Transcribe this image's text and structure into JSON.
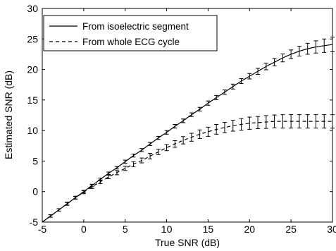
{
  "chart_data": {
    "type": "line",
    "title": "",
    "xlabel": "True SNR (dB)",
    "ylabel": "Estimated SNR (dB)",
    "xlim": [
      -5,
      30
    ],
    "ylim": [
      -5,
      30
    ],
    "xticks": [
      -5,
      0,
      5,
      10,
      15,
      20,
      25,
      30
    ],
    "yticks": [
      -5,
      0,
      5,
      10,
      15,
      20,
      25,
      30
    ],
    "grid": false,
    "legend_position": "top-left",
    "x": [
      -4,
      -3,
      -2,
      -1,
      0,
      1,
      2,
      3,
      4,
      5,
      6,
      7,
      8,
      9,
      10,
      11,
      12,
      13,
      14,
      15,
      16,
      17,
      18,
      19,
      20,
      21,
      22,
      23,
      24,
      25,
      26,
      27,
      28,
      29,
      30
    ],
    "series": [
      {
        "name": "From isoelectric segment",
        "line_style": "solid",
        "values": [
          -4.0,
          -3.0,
          -2.0,
          -1.0,
          0.0,
          1.0,
          2.0,
          3.0,
          3.9,
          4.9,
          5.9,
          6.8,
          7.8,
          8.8,
          9.7,
          10.7,
          11.6,
          12.6,
          13.5,
          14.5,
          15.4,
          16.3,
          17.2,
          18.1,
          18.9,
          19.7,
          20.5,
          21.2,
          21.9,
          22.5,
          23.0,
          23.4,
          23.7,
          23.9,
          24.1
        ],
        "error": [
          0.2,
          0.2,
          0.2,
          0.2,
          0.2,
          0.2,
          0.2,
          0.2,
          0.2,
          0.25,
          0.25,
          0.25,
          0.25,
          0.25,
          0.3,
          0.3,
          0.3,
          0.3,
          0.3,
          0.35,
          0.35,
          0.35,
          0.4,
          0.4,
          0.45,
          0.5,
          0.55,
          0.6,
          0.65,
          0.7,
          0.8,
          0.9,
          1.0,
          1.1,
          1.2
        ]
      },
      {
        "name": "From whole ECG cycle",
        "line_style": "dashed",
        "values": [
          -4.0,
          -3.0,
          -2.0,
          -1.0,
          -0.1,
          0.8,
          1.6,
          2.4,
          3.1,
          3.8,
          4.5,
          5.1,
          5.8,
          6.5,
          7.2,
          7.8,
          8.4,
          8.9,
          9.4,
          9.8,
          10.2,
          10.5,
          10.8,
          11.0,
          11.2,
          11.3,
          11.4,
          11.5,
          11.5,
          11.5,
          11.5,
          11.5,
          11.5,
          11.5,
          11.5
        ],
        "error": [
          0.2,
          0.2,
          0.25,
          0.25,
          0.25,
          0.3,
          0.3,
          0.3,
          0.35,
          0.35,
          0.4,
          0.4,
          0.45,
          0.45,
          0.5,
          0.55,
          0.6,
          0.65,
          0.7,
          0.75,
          0.8,
          0.85,
          0.9,
          0.95,
          1.0,
          1.0,
          1.05,
          1.05,
          1.1,
          1.1,
          1.1,
          1.1,
          1.1,
          1.1,
          1.1
        ]
      }
    ]
  }
}
